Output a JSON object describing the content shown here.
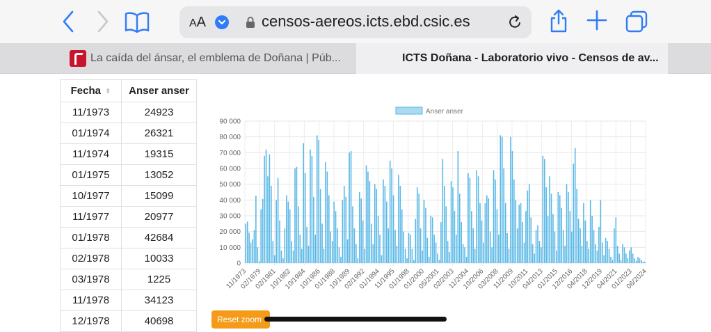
{
  "browser": {
    "url": "censos-aereos.icts.ebd.csic.es",
    "aa_label": "AA",
    "tabs": [
      {
        "title": "La caída del ánsar, el emblema de Doñana | Púb..."
      },
      {
        "title": "ICTS Doñana - Laboratorio vivo - Censos de av..."
      }
    ],
    "accent": "#2f7cf6"
  },
  "table": {
    "headers": [
      "Fecha",
      "Anser anser"
    ],
    "rows": [
      [
        "11/1973",
        "24923"
      ],
      [
        "01/1974",
        "26321"
      ],
      [
        "11/1974",
        "19315"
      ],
      [
        "01/1975",
        "13052"
      ],
      [
        "10/1977",
        "15099"
      ],
      [
        "11/1977",
        "20977"
      ],
      [
        "01/1978",
        "42684"
      ],
      [
        "02/1978",
        "10033"
      ],
      [
        "03/1978",
        "1225"
      ],
      [
        "11/1978",
        "34123"
      ],
      [
        "12/1978",
        "40698"
      ]
    ]
  },
  "reset_zoom_label": "Reset zoom",
  "chart_data": {
    "type": "bar",
    "legend": "Anser anser",
    "legend_position": "top",
    "color": "#59b8e6",
    "ylim": [
      0,
      90000
    ],
    "yticks": [
      "0",
      "10 000",
      "20 000",
      "30 000",
      "40 000",
      "50 000",
      "60 000",
      "70 000",
      "80 000",
      "90 000"
    ],
    "xticks": [
      "11/1973",
      "02/1979",
      "02/1981",
      "10/1982",
      "10/1984",
      "10/1986",
      "01/1988",
      "10/1989",
      "02/1992",
      "01/1994",
      "11/1995",
      "01/1998",
      "01/2000",
      "05/2001",
      "02/2003",
      "11/2004",
      "10/2006",
      "03/2008",
      "11/2009",
      "10/2011",
      "04/2013",
      "01/2015",
      "12/2016",
      "04/2018",
      "12/2019",
      "04/2021",
      "01/2023",
      "06/2024"
    ],
    "grid": true,
    "values": [
      24923,
      26321,
      19315,
      13052,
      15099,
      20977,
      42684,
      10033,
      1225,
      34123,
      40698,
      68000,
      72000,
      55000,
      69000,
      49000,
      14000,
      5000,
      40000,
      54000,
      27000,
      8000,
      3000,
      22000,
      43000,
      39000,
      34000,
      14000,
      8000,
      60000,
      61000,
      36000,
      18000,
      9000,
      76000,
      57000,
      23000,
      11000,
      72000,
      68000,
      42000,
      18000,
      81000,
      78000,
      47000,
      25000,
      9000,
      64000,
      58000,
      43000,
      20000,
      14000,
      39000,
      33000,
      22000,
      10000,
      4000,
      40000,
      49000,
      42000,
      15000,
      70000,
      71000,
      36000,
      22000,
      12000,
      3000,
      45000,
      41000,
      27000,
      9000,
      62000,
      58000,
      52000,
      25000,
      12000,
      50000,
      47000,
      30000,
      18000,
      5000,
      53000,
      49000,
      39000,
      22000,
      65000,
      60000,
      43000,
      21000,
      11000,
      56000,
      49000,
      34000,
      20000,
      9000,
      3000,
      19000,
      18000,
      9000,
      2000,
      28000,
      48000,
      44000,
      22000,
      8000,
      40000,
      35000,
      16000,
      4000,
      30000,
      29000,
      18000,
      13000,
      6000,
      2000,
      26000,
      66000,
      49000,
      36000,
      14000,
      7000,
      52000,
      48000,
      33000,
      18000,
      71000,
      44000,
      26000,
      12000,
      10000,
      4000,
      57000,
      54000,
      33000,
      22000,
      9000,
      59000,
      55000,
      38000,
      27000,
      13000,
      38000,
      43000,
      41000,
      20000,
      10000,
      59000,
      53000,
      34000,
      18000,
      81000,
      80000,
      60000,
      38000,
      19000,
      9000,
      80000,
      71000,
      53000,
      40000,
      22000,
      37000,
      38000,
      26000,
      13000,
      33000,
      46000,
      50000,
      29000,
      12000,
      6000,
      21000,
      24000,
      14000,
      10000,
      68000,
      66000,
      48000,
      30000,
      55000,
      44000,
      31000,
      20000,
      8000,
      45000,
      43000,
      35000,
      21000,
      11000,
      50000,
      45000,
      33000,
      20000,
      63000,
      73000,
      47000,
      28000,
      22000,
      11000,
      38000,
      27000,
      14000,
      9000,
      40000,
      30000,
      21000,
      12000,
      8000,
      23000,
      40000,
      13000,
      5000,
      16000,
      14000,
      9000,
      4000,
      2000,
      22000,
      29000,
      11000,
      6000,
      2000,
      12000,
      10000,
      6000,
      3000,
      8000,
      10000,
      6000,
      3000,
      1500,
      4000,
      3000,
      2000,
      1000,
      900
    ]
  }
}
